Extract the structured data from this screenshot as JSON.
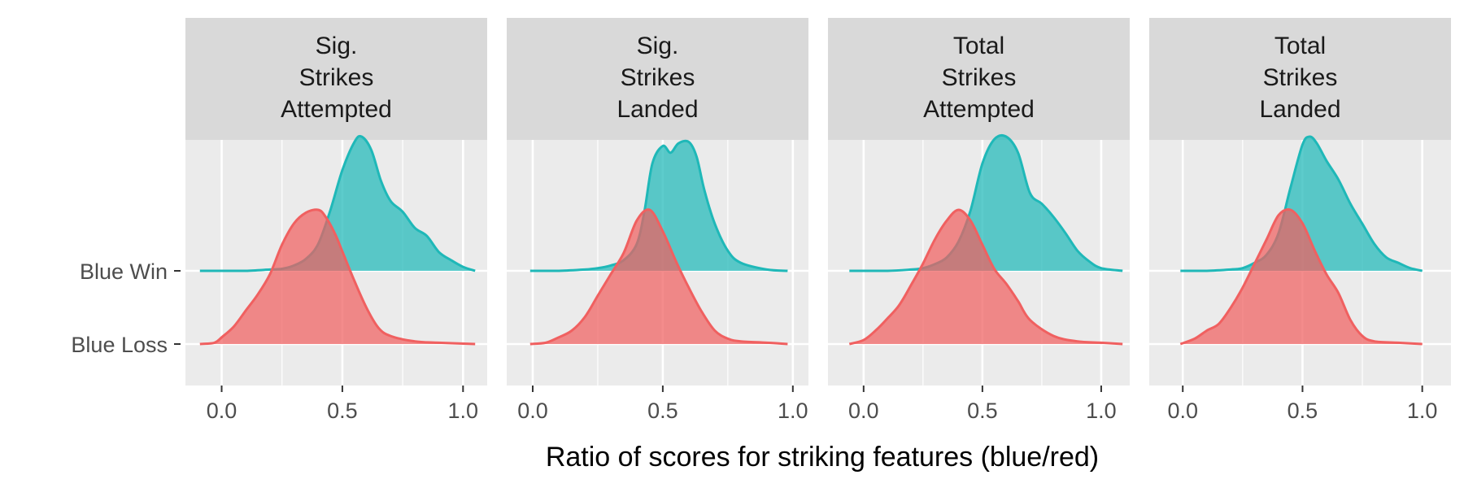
{
  "chart_data": {
    "type": "ridgeline",
    "xlabel": "Ratio of scores for striking features (blue/red)",
    "ylabel": "",
    "x_ticks": [
      0.0,
      0.5,
      1.0
    ],
    "x_tick_labels": [
      "0.0",
      "0.5",
      "1.0"
    ],
    "y_categories": [
      "Blue Win",
      "Blue Loss"
    ],
    "grid": true,
    "legend": "none",
    "colors": {
      "Blue Win": "#1fb8b8",
      "Blue Loss": "#f06060"
    },
    "panels": [
      {
        "title": "Sig.\nStrikes\nAttempted",
        "title_lines": [
          "Sig.",
          "Strikes",
          "Attempted"
        ],
        "xlim": [
          -0.15,
          1.1
        ],
        "series": [
          {
            "name": "Blue Win",
            "x": [
              -0.09,
              0.0,
              0.1,
              0.2,
              0.25,
              0.3,
              0.35,
              0.4,
              0.45,
              0.5,
              0.55,
              0.58,
              0.62,
              0.66,
              0.7,
              0.75,
              0.8,
              0.85,
              0.9,
              0.95,
              1.0,
              1.05
            ],
            "y": [
              0.0,
              0.0,
              0.0,
              0.01,
              0.015,
              0.04,
              0.09,
              0.2,
              0.45,
              0.75,
              0.96,
              1.0,
              0.9,
              0.67,
              0.52,
              0.44,
              0.32,
              0.26,
              0.14,
              0.08,
              0.03,
              0.0
            ]
          },
          {
            "name": "Blue Loss",
            "x": [
              -0.09,
              -0.03,
              0.0,
              0.05,
              0.1,
              0.15,
              0.2,
              0.25,
              0.3,
              0.35,
              0.4,
              0.43,
              0.47,
              0.5,
              0.55,
              0.6,
              0.65,
              0.7,
              0.8,
              0.9,
              1.05
            ],
            "y": [
              0.0,
              0.01,
              0.05,
              0.13,
              0.25,
              0.37,
              0.52,
              0.74,
              0.9,
              0.98,
              1.0,
              0.95,
              0.82,
              0.69,
              0.47,
              0.27,
              0.12,
              0.06,
              0.02,
              0.01,
              0.0
            ]
          }
        ]
      },
      {
        "title": "Sig.\nStrikes\nLanded",
        "title_lines": [
          "Sig.",
          "Strikes",
          "Landed"
        ],
        "xlim": [
          -0.1,
          1.06
        ],
        "series": [
          {
            "name": "Blue Win",
            "x": [
              -0.01,
              0.1,
              0.2,
              0.25,
              0.3,
              0.35,
              0.4,
              0.43,
              0.46,
              0.5,
              0.53,
              0.56,
              0.6,
              0.63,
              0.66,
              0.7,
              0.75,
              0.8,
              0.9,
              0.98
            ],
            "y": [
              0.0,
              0.0,
              0.01,
              0.02,
              0.04,
              0.08,
              0.2,
              0.45,
              0.8,
              0.93,
              0.88,
              0.95,
              0.96,
              0.85,
              0.6,
              0.35,
              0.15,
              0.06,
              0.01,
              0.0
            ]
          },
          {
            "name": "Blue Loss",
            "x": [
              -0.01,
              0.05,
              0.1,
              0.15,
              0.2,
              0.25,
              0.3,
              0.35,
              0.4,
              0.45,
              0.5,
              0.55,
              0.6,
              0.65,
              0.7,
              0.75,
              0.8,
              0.9,
              0.98
            ],
            "y": [
              0.0,
              0.01,
              0.05,
              0.1,
              0.2,
              0.36,
              0.52,
              0.68,
              0.92,
              1.0,
              0.84,
              0.62,
              0.42,
              0.24,
              0.1,
              0.04,
              0.02,
              0.01,
              0.0
            ]
          }
        ]
      },
      {
        "title": "Total\nStrikes\nAttempted",
        "title_lines": [
          "Total",
          "Strikes",
          "Attempted"
        ],
        "xlim": [
          -0.15,
          1.12
        ],
        "series": [
          {
            "name": "Blue Win",
            "x": [
              -0.06,
              0.1,
              0.2,
              0.25,
              0.3,
              0.35,
              0.4,
              0.45,
              0.5,
              0.55,
              0.6,
              0.65,
              0.7,
              0.75,
              0.8,
              0.85,
              0.9,
              0.95,
              1.0,
              1.09
            ],
            "y": [
              0.0,
              0.0,
              0.01,
              0.02,
              0.05,
              0.1,
              0.22,
              0.45,
              0.8,
              0.98,
              1.0,
              0.88,
              0.58,
              0.5,
              0.4,
              0.28,
              0.15,
              0.07,
              0.02,
              0.0
            ]
          },
          {
            "name": "Blue Loss",
            "x": [
              -0.06,
              0.0,
              0.05,
              0.1,
              0.15,
              0.2,
              0.25,
              0.3,
              0.35,
              0.4,
              0.45,
              0.5,
              0.55,
              0.6,
              0.65,
              0.7,
              0.8,
              0.9,
              1.0,
              1.09
            ],
            "y": [
              0.0,
              0.03,
              0.1,
              0.19,
              0.29,
              0.44,
              0.6,
              0.78,
              0.92,
              1.0,
              0.92,
              0.74,
              0.56,
              0.45,
              0.32,
              0.18,
              0.06,
              0.02,
              0.01,
              0.0
            ]
          }
        ]
      },
      {
        "title": "Total\nStrikes\nLanded",
        "title_lines": [
          "Total",
          "Strikes",
          "Landed"
        ],
        "xlim": [
          -0.14,
          1.12
        ],
        "series": [
          {
            "name": "Blue Win",
            "x": [
              -0.01,
              0.1,
              0.2,
              0.25,
              0.3,
              0.35,
              0.4,
              0.45,
              0.5,
              0.53,
              0.56,
              0.6,
              0.65,
              0.7,
              0.75,
              0.8,
              0.85,
              0.9,
              0.95,
              1.0
            ],
            "y": [
              0.0,
              0.0,
              0.01,
              0.02,
              0.06,
              0.12,
              0.28,
              0.62,
              0.94,
              1.0,
              0.95,
              0.82,
              0.68,
              0.5,
              0.35,
              0.2,
              0.1,
              0.06,
              0.02,
              0.0
            ]
          },
          {
            "name": "Blue Loss",
            "x": [
              -0.01,
              0.05,
              0.1,
              0.15,
              0.2,
              0.25,
              0.3,
              0.35,
              0.4,
              0.45,
              0.5,
              0.55,
              0.6,
              0.65,
              0.7,
              0.75,
              0.8,
              0.9,
              1.0
            ],
            "y": [
              0.0,
              0.04,
              0.1,
              0.15,
              0.27,
              0.42,
              0.6,
              0.78,
              0.96,
              1.0,
              0.9,
              0.7,
              0.52,
              0.38,
              0.18,
              0.06,
              0.02,
              0.01,
              0.0
            ]
          }
        ]
      }
    ]
  }
}
